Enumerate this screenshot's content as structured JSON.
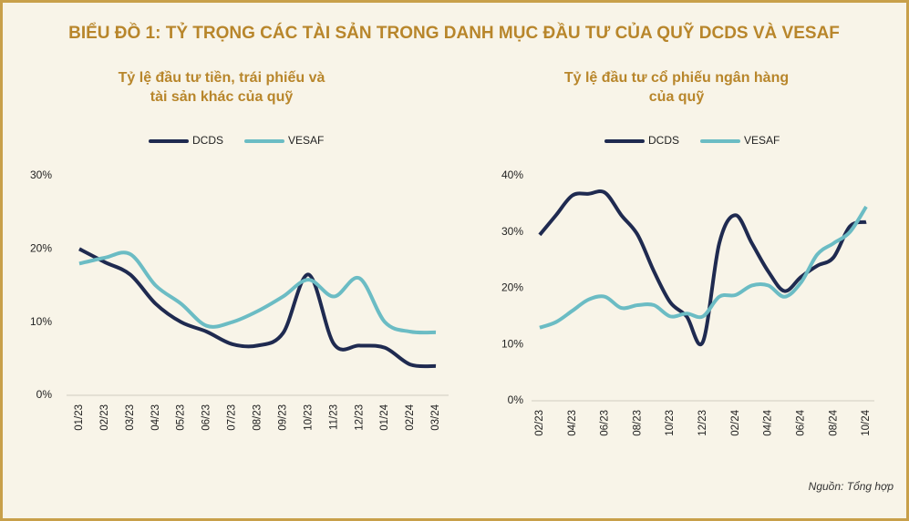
{
  "title": "BIỂU ĐỒ 1: TỶ TRỌNG CÁC TÀI SẢN TRONG DANH MỤC ĐẦU TƯ CỦA QUỸ DCDS VÀ VESAF",
  "source": "Nguồn: Tổng hợp",
  "chart_data": [
    {
      "type": "line",
      "title": [
        "Tỷ lệ đầu tư tiền, trái phiếu và",
        "tài sản khác của quỹ"
      ],
      "categories": [
        "01/23",
        "02/23",
        "03/23",
        "04/23",
        "05/23",
        "06/23",
        "07/23",
        "08/23",
        "09/23",
        "10/23",
        "11/23",
        "12/23",
        "01/24",
        "02/24",
        "03/24"
      ],
      "series": [
        {
          "name": "DCDS",
          "color": "#1f2a50",
          "values": [
            20,
            18.2,
            16.5,
            12.5,
            10,
            8.7,
            7,
            6.8,
            8.5,
            16.5,
            7,
            6.8,
            6.5,
            4.2,
            4
          ]
        },
        {
          "name": "VESAF",
          "color": "#6bbcc4",
          "values": [
            18,
            18.8,
            19.3,
            15,
            12.5,
            9.5,
            10,
            11.5,
            13.5,
            15.8,
            13.5,
            16,
            10,
            8.7,
            8.6
          ]
        }
      ],
      "ylim": [
        0,
        30
      ],
      "yticks": [
        {
          "value": 0,
          "label": "0%"
        },
        {
          "value": 10,
          "label": "10%"
        },
        {
          "value": 20,
          "label": "20%"
        },
        {
          "value": 30,
          "label": "30%"
        }
      ],
      "grid": false,
      "legend": "top"
    },
    {
      "type": "line",
      "title": [
        "Tỷ lệ đầu tư cổ phiếu ngân hàng",
        "của quỹ"
      ],
      "categories": [
        "02/23",
        null,
        "04/23",
        null,
        "06/23",
        null,
        "08/23",
        null,
        "10/23",
        null,
        "12/23",
        null,
        "02/24",
        null,
        "04/24",
        null,
        "06/24",
        null,
        "08/24",
        null,
        "10/24"
      ],
      "series": [
        {
          "name": "DCDS",
          "color": "#1f2a50",
          "values": [
            29.5,
            33,
            36.5,
            36.8,
            37,
            33,
            29.5,
            23,
            17.5,
            15,
            10.5,
            28,
            33,
            28,
            23,
            19.5,
            22,
            24,
            25.5,
            31,
            31.8
          ]
        },
        {
          "name": "VESAF",
          "color": "#6bbcc4",
          "values": [
            13,
            14,
            16,
            18,
            18.5,
            16.5,
            17,
            17,
            15,
            15.5,
            15,
            18.5,
            18.8,
            20.5,
            20.5,
            18.5,
            21,
            26,
            28,
            30,
            34.5
          ]
        }
      ],
      "ylim": [
        0,
        40
      ],
      "yticks": [
        {
          "value": 0,
          "label": "0%"
        },
        {
          "value": 10,
          "label": "10%"
        },
        {
          "value": 20,
          "label": "20%"
        },
        {
          "value": 30,
          "label": "30%"
        },
        {
          "value": 40,
          "label": "40%"
        }
      ],
      "grid": false,
      "legend": "top"
    }
  ]
}
